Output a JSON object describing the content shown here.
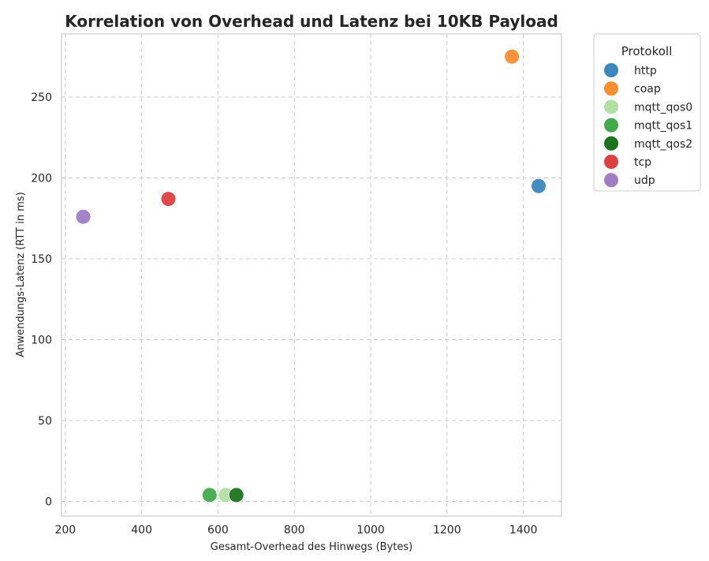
{
  "chart_data": {
    "type": "scatter",
    "title": "Korrelation von Overhead und Latenz bei 10KB Payload",
    "xlabel": "Gesamt-Overhead des Hinwegs (Bytes)",
    "ylabel": "Anwendungs-Latenz (RTT in ms)",
    "xlim": [
      190,
      1500
    ],
    "ylim": [
      -9,
      289
    ],
    "xticks": [
      200,
      400,
      600,
      800,
      1000,
      1200,
      1400
    ],
    "yticks": [
      0,
      50,
      100,
      150,
      200,
      250
    ],
    "grid": true,
    "legend": {
      "title": "Protokoll",
      "placement": "outside-top-right"
    },
    "series": [
      {
        "name": "http",
        "color": "#3a87c0",
        "points": [
          {
            "x": 1440,
            "y": 195
          }
        ]
      },
      {
        "name": "coap",
        "color": "#fd8d2f",
        "points": [
          {
            "x": 1370,
            "y": 275
          }
        ]
      },
      {
        "name": "mqtt_qos0",
        "color": "#b2e0a2",
        "points": [
          {
            "x": 620,
            "y": 4
          }
        ]
      },
      {
        "name": "mqtt_qos1",
        "color": "#41ab4b",
        "points": [
          {
            "x": 578,
            "y": 4
          }
        ]
      },
      {
        "name": "mqtt_qos2",
        "color": "#1b741d",
        "points": [
          {
            "x": 648,
            "y": 4
          }
        ]
      },
      {
        "name": "tcp",
        "color": "#de3f40",
        "points": [
          {
            "x": 470,
            "y": 187
          }
        ]
      },
      {
        "name": "udp",
        "color": "#a07cc6",
        "points": [
          {
            "x": 247,
            "y": 176
          }
        ]
      }
    ]
  }
}
